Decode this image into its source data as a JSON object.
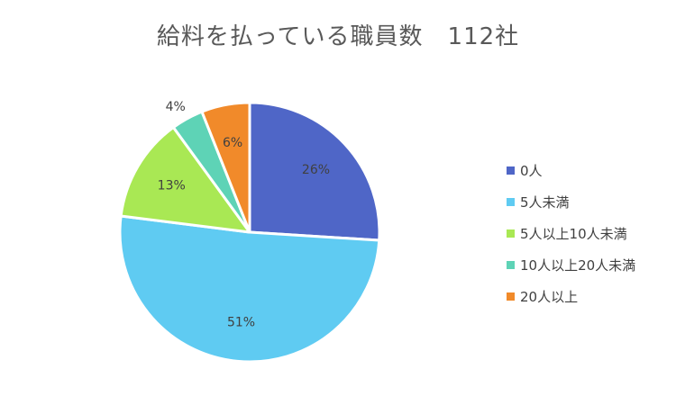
{
  "chart_data": {
    "type": "pie",
    "title": "給料を払っている職員数　112社",
    "categories": [
      "0人",
      "5人未満",
      "5人以上10人未満",
      "10人以上20人未満",
      "20人以上"
    ],
    "values": [
      26,
      51,
      13,
      4,
      6
    ],
    "data_labels": [
      "26%",
      "51%",
      "13%",
      "4%",
      "6%"
    ],
    "colors": [
      "#4F66C7",
      "#5FCBF2",
      "#A9E854",
      "#5ED3B6",
      "#F18A2A"
    ],
    "legend_position": "right"
  }
}
